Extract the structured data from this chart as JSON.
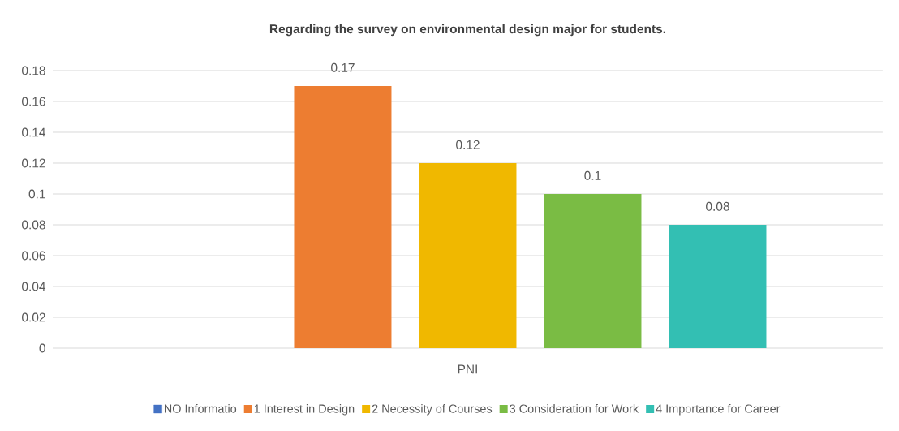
{
  "chart_data": {
    "type": "bar",
    "title": "Regarding the survey on environmental design major for students.",
    "categories": [
      "PNI"
    ],
    "series": [
      {
        "name": "NO Informatio",
        "color": "#4472c4",
        "values": [
          null
        ]
      },
      {
        "name": "1 Interest in Design",
        "color": "#ed7d31",
        "values": [
          0.17
        ],
        "value_labels": [
          "0.17"
        ]
      },
      {
        "name": "2 Necessity of Courses",
        "color": "#f0b800",
        "values": [
          0.12
        ],
        "value_labels": [
          "0.12"
        ]
      },
      {
        "name": "3 Consideration for Work",
        "color": "#7abc44",
        "values": [
          0.1
        ],
        "value_labels": [
          "0.1"
        ]
      },
      {
        "name": "4 Importance for Career",
        "color": "#33bfb3",
        "values": [
          0.08
        ],
        "value_labels": [
          "0.08"
        ]
      }
    ],
    "ylim": [
      0,
      0.18
    ],
    "yticks": [
      0,
      0.02,
      0.04,
      0.06,
      0.08,
      0.1,
      0.12,
      0.14,
      0.16,
      0.18
    ],
    "grid": "y",
    "legend": "bottom"
  }
}
